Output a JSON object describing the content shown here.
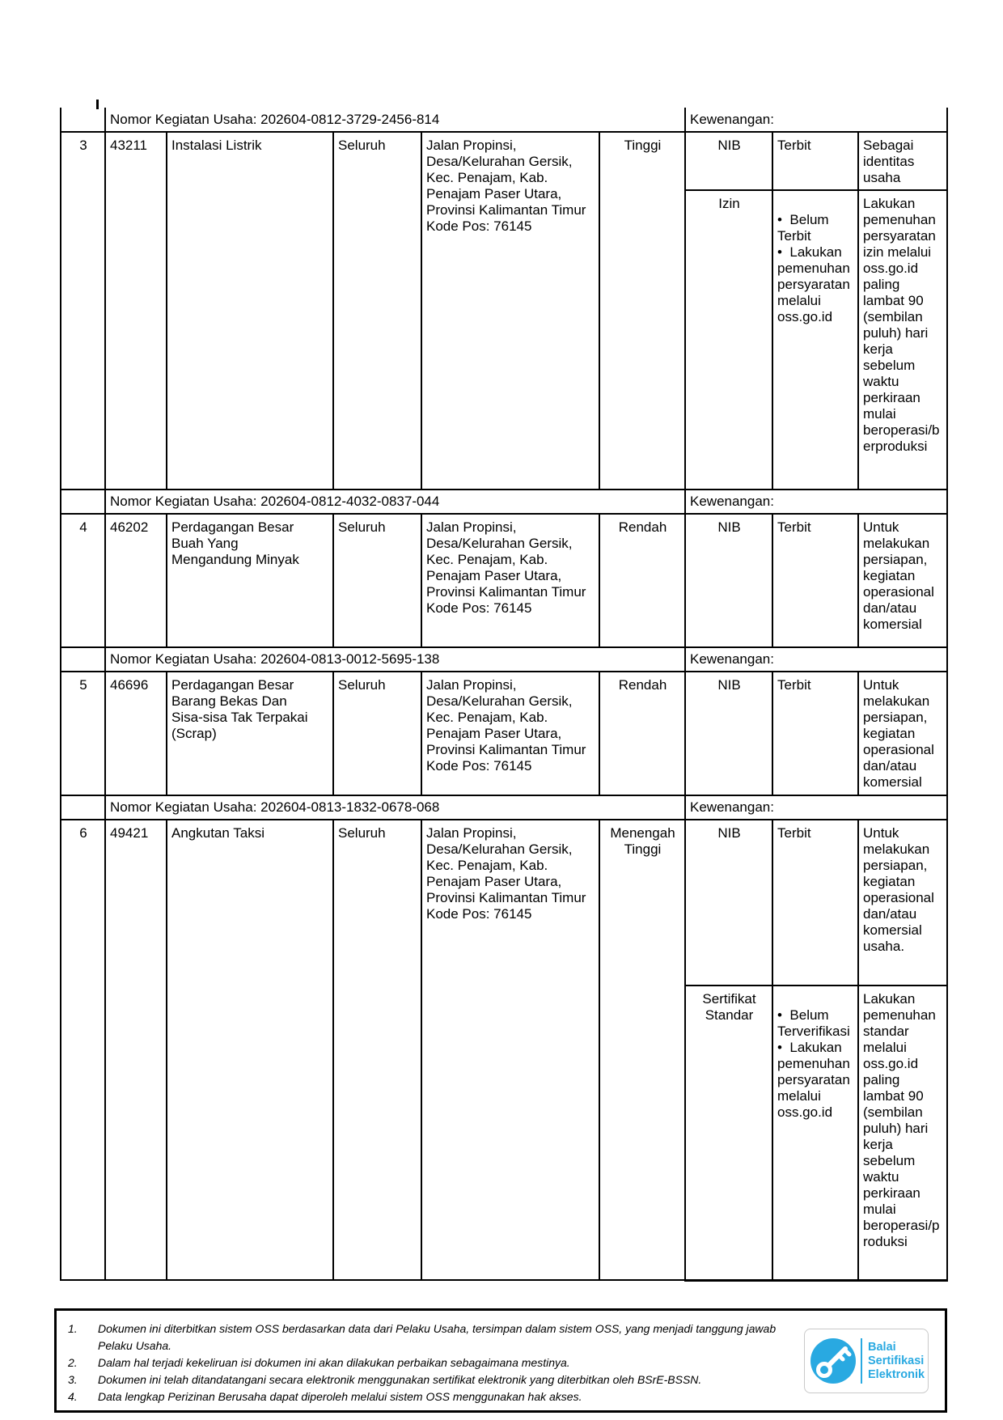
{
  "colors": {
    "logo_blue": "#29a9e1",
    "table_border": "#000000"
  },
  "page": {
    "kegiatan": [
      {
        "nomor_label": "Nomor Kegiatan Usaha: 202604-0812-3729-2456-814",
        "kewenangan_label": "Kewenangan:",
        "no": "3",
        "kbli": "43211",
        "nama_usaha": "Instalasi Listrik",
        "cakupan": "Seluruh",
        "lokasi": "Jalan Propinsi,\nDesa/Kelurahan Gersik,\nKec. Penajam, Kab.\nPenajam Paser Utara,\nProvinsi Kalimantan Timur\nKode Pos: 76145",
        "risiko": "Tinggi",
        "perizinan": [
          {
            "jenis": "NIB",
            "status": "Terbit",
            "keterangan": "Sebagai identitas usaha"
          },
          {
            "jenis": "Izin",
            "status_items": [
              "Belum Terbit",
              "Lakukan pemenuhan persyaratan melalui oss.go.id"
            ],
            "keterangan": "Lakukan\npemenuhan\npersyaratan\nizin melalui\noss.go.id\npaling\nlambat 90\n(sembilan\npuluh) hari\nkerja\nsebelum\nwaktu\nperkiraan\nmulai\nberoperasi/berproduksi"
          }
        ]
      },
      {
        "nomor_label": "Nomor Kegiatan Usaha: 202604-0812-4032-0837-044",
        "kewenangan_label": "Kewenangan:",
        "no": "4",
        "kbli": "46202",
        "nama_usaha": "Perdagangan Besar\nBuah Yang\nMengandung Minyak",
        "cakupan": "Seluruh",
        "lokasi": "Jalan Propinsi,\nDesa/Kelurahan Gersik,\nKec. Penajam, Kab.\nPenajam Paser Utara,\nProvinsi Kalimantan Timur\nKode Pos: 76145",
        "risiko": "Rendah",
        "perizinan": [
          {
            "jenis": "NIB",
            "status": "Terbit",
            "keterangan": "Untuk melakukan persiapan, kegiatan operasional dan/atau komersial"
          }
        ]
      },
      {
        "nomor_label": "Nomor Kegiatan Usaha: 202604-0813-0012-5695-138",
        "kewenangan_label": "Kewenangan:",
        "no": "5",
        "kbli": "46696",
        "nama_usaha": "Perdagangan Besar\nBarang Bekas Dan\nSisa-sisa Tak Terpakai\n(Scrap)",
        "cakupan": "Seluruh",
        "lokasi": "Jalan Propinsi,\nDesa/Kelurahan Gersik,\nKec. Penajam, Kab.\nPenajam Paser Utara,\nProvinsi Kalimantan Timur\nKode Pos: 76145",
        "risiko": "Rendah",
        "perizinan": [
          {
            "jenis": "NIB",
            "status": "Terbit",
            "keterangan": "Untuk melakukan persiapan, kegiatan operasional dan/atau komersial"
          }
        ]
      },
      {
        "nomor_label": "Nomor Kegiatan Usaha: 202604-0813-1832-0678-068",
        "kewenangan_label": "Kewenangan:",
        "no": "6",
        "kbli": "49421",
        "nama_usaha": "Angkutan Taksi",
        "cakupan": "Seluruh",
        "lokasi": "Jalan Propinsi,\nDesa/Kelurahan Gersik,\nKec. Penajam, Kab.\nPenajam Paser Utara,\nProvinsi Kalimantan Timur\nKode Pos: 76145",
        "risiko": "Menengah Tinggi",
        "perizinan": [
          {
            "jenis": "NIB",
            "status": "Terbit",
            "keterangan": "Untuk melakukan persiapan, kegiatan operasional dan/atau komersial usaha."
          },
          {
            "jenis": "Sertifikat Standar",
            "status_items": [
              "Belum Terverifikasi",
              "Lakukan pemenuhan persyaratan melalui oss.go.id"
            ],
            "keterangan": "Lakukan\npemenuhan\nstandar\nmelalui\noss.go.id\npaling\nlambat 90\n(sembilan\npuluh) hari\nkerja\nsebelum\nwaktu\nperkiraan\nmulai\nberoperasi/produksi"
          }
        ]
      }
    ]
  },
  "footer": {
    "notes": [
      {
        "num": "1.",
        "text": "Dokumen ini diterbitkan sistem OSS berdasarkan data dari Pelaku Usaha, tersimpan dalam sistem OSS, yang menjadi tanggung jawab\nPelaku Usaha."
      },
      {
        "num": "2.",
        "text": "Dalam hal terjadi kekeliruan isi dokumen ini akan dilakukan perbaikan sebagaimana mestinya."
      },
      {
        "num": "3.",
        "text": "Dokumen ini telah ditandatangani secara elektronik menggunakan sertifikat elektronik yang diterbitkan oleh BSrE-BSSN."
      },
      {
        "num": "4.",
        "text": "Data lengkap Perizinan Berusaha dapat diperoleh melalui sistem OSS menggunakan hak akses."
      }
    ],
    "logo": {
      "line1": "Balai",
      "line2": "Sertifikasi",
      "line3": "Elektronik"
    }
  }
}
